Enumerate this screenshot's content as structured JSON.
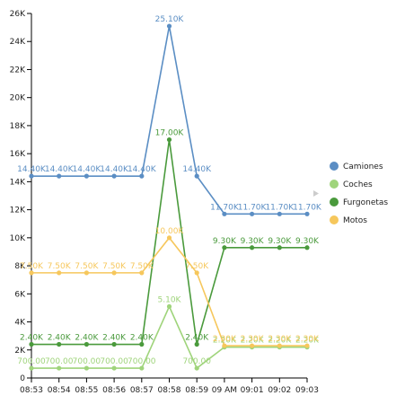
{
  "chart_data": {
    "type": "line",
    "title": "",
    "xlabel": "",
    "ylabel": "",
    "categories": [
      "08:53",
      "08:54",
      "08:55",
      "08:56",
      "08:57",
      "08:58",
      "08:59",
      "09 AM",
      "09:01",
      "09:02",
      "09:03"
    ],
    "ylim": [
      0,
      26000
    ],
    "y_ticks": [
      {
        "value": 0,
        "label": "0"
      },
      {
        "value": 2000,
        "label": "2K"
      },
      {
        "value": 4000,
        "label": "4K"
      },
      {
        "value": 6000,
        "label": "6K"
      },
      {
        "value": 8000,
        "label": "8K"
      },
      {
        "value": 10000,
        "label": "10K"
      },
      {
        "value": 12000,
        "label": "12K"
      },
      {
        "value": 14000,
        "label": "14K"
      },
      {
        "value": 16000,
        "label": "16K"
      },
      {
        "value": 18000,
        "label": "18K"
      },
      {
        "value": 20000,
        "label": "20K"
      },
      {
        "value": 22000,
        "label": "22K"
      },
      {
        "value": 24000,
        "label": "24K"
      },
      {
        "value": 26000,
        "label": "26K"
      }
    ],
    "grid": false,
    "legend_position": "right",
    "series": [
      {
        "name": "Camiones",
        "color": "#5b8ec4",
        "values": [
          14400,
          14400,
          14400,
          14400,
          14400,
          25100,
          14400,
          11700,
          11700,
          11700,
          11700
        ],
        "labels": [
          "14.40K",
          "14.40K",
          "14.40K",
          "14.40K",
          "14.40K",
          "25.10K",
          "14.40K",
          "11.70K",
          "11.70K",
          "11.70K",
          "11.70K"
        ]
      },
      {
        "name": "Coches",
        "color": "#9fd47b",
        "values": [
          700,
          700,
          700,
          700,
          700,
          5100,
          700,
          2200,
          2200,
          2200,
          2200
        ],
        "labels": [
          "700.00",
          "700.00",
          "700.00",
          "700.00",
          "700.00",
          "5.10K",
          "700.00",
          "2.20K",
          "2.20K",
          "2.20K",
          "2.20K"
        ]
      },
      {
        "name": "Furgonetas",
        "color": "#4a9a3c",
        "values": [
          2400,
          2400,
          2400,
          2400,
          2400,
          17000,
          2400,
          9300,
          9300,
          9300,
          9300
        ],
        "labels": [
          "2.40K",
          "2.40K",
          "2.40K",
          "2.40K",
          "2.40K",
          "17.00K",
          "2.40K",
          "9.30K",
          "9.30K",
          "9.30K",
          "9.30K"
        ]
      },
      {
        "name": "Motos",
        "color": "#f6c75c",
        "values": [
          7500,
          7500,
          7500,
          7500,
          7500,
          10000,
          7500,
          2300,
          2300,
          2300,
          2300
        ],
        "labels": [
          "7.50K",
          "7.50K",
          "7.50K",
          "7.50K",
          "7.50K",
          "10.00K",
          "7.50K",
          "2.30K",
          "2.30K",
          "2.30K",
          "2.30K"
        ]
      }
    ]
  }
}
